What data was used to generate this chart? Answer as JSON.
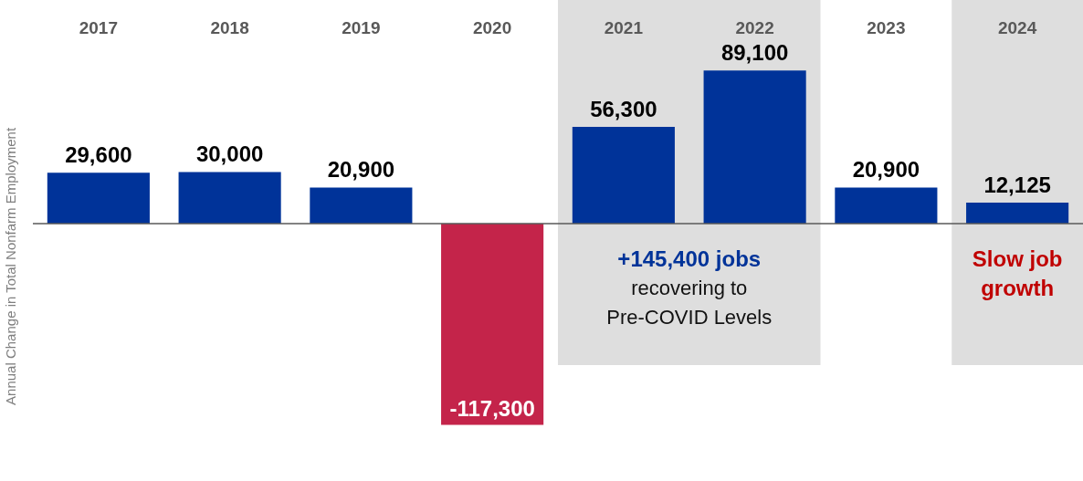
{
  "chart_data": {
    "type": "bar",
    "ylabel": "Annual Change in Total Nonfarm Employment",
    "categories": [
      "2017",
      "2018",
      "2019",
      "2020",
      "2021",
      "2022",
      "2023",
      "2024"
    ],
    "values": [
      29600,
      30000,
      20900,
      -117300,
      56300,
      89100,
      20900,
      12125
    ],
    "colors": [
      "#003399",
      "#003399",
      "#003399",
      "#c4244a",
      "#003399",
      "#003399",
      "#003399",
      "#003399"
    ],
    "value_labels": [
      "29,600",
      "30,000",
      "20,900",
      "-117,300",
      "56,300",
      "89,100",
      "20,900",
      "12,125"
    ],
    "grid": false,
    "legend": false,
    "tick_labels": "x",
    "bands": [
      {
        "axis": "x",
        "from": "2021",
        "to": "2022",
        "label": "+145,400 jobs\nrecovering to\nPre-COVID Levels",
        "color": "#dedede"
      },
      {
        "axis": "x",
        "from": "2024",
        "to": "2024",
        "label": "Slow job\ngrowth",
        "color": "#dedede"
      }
    ]
  }
}
